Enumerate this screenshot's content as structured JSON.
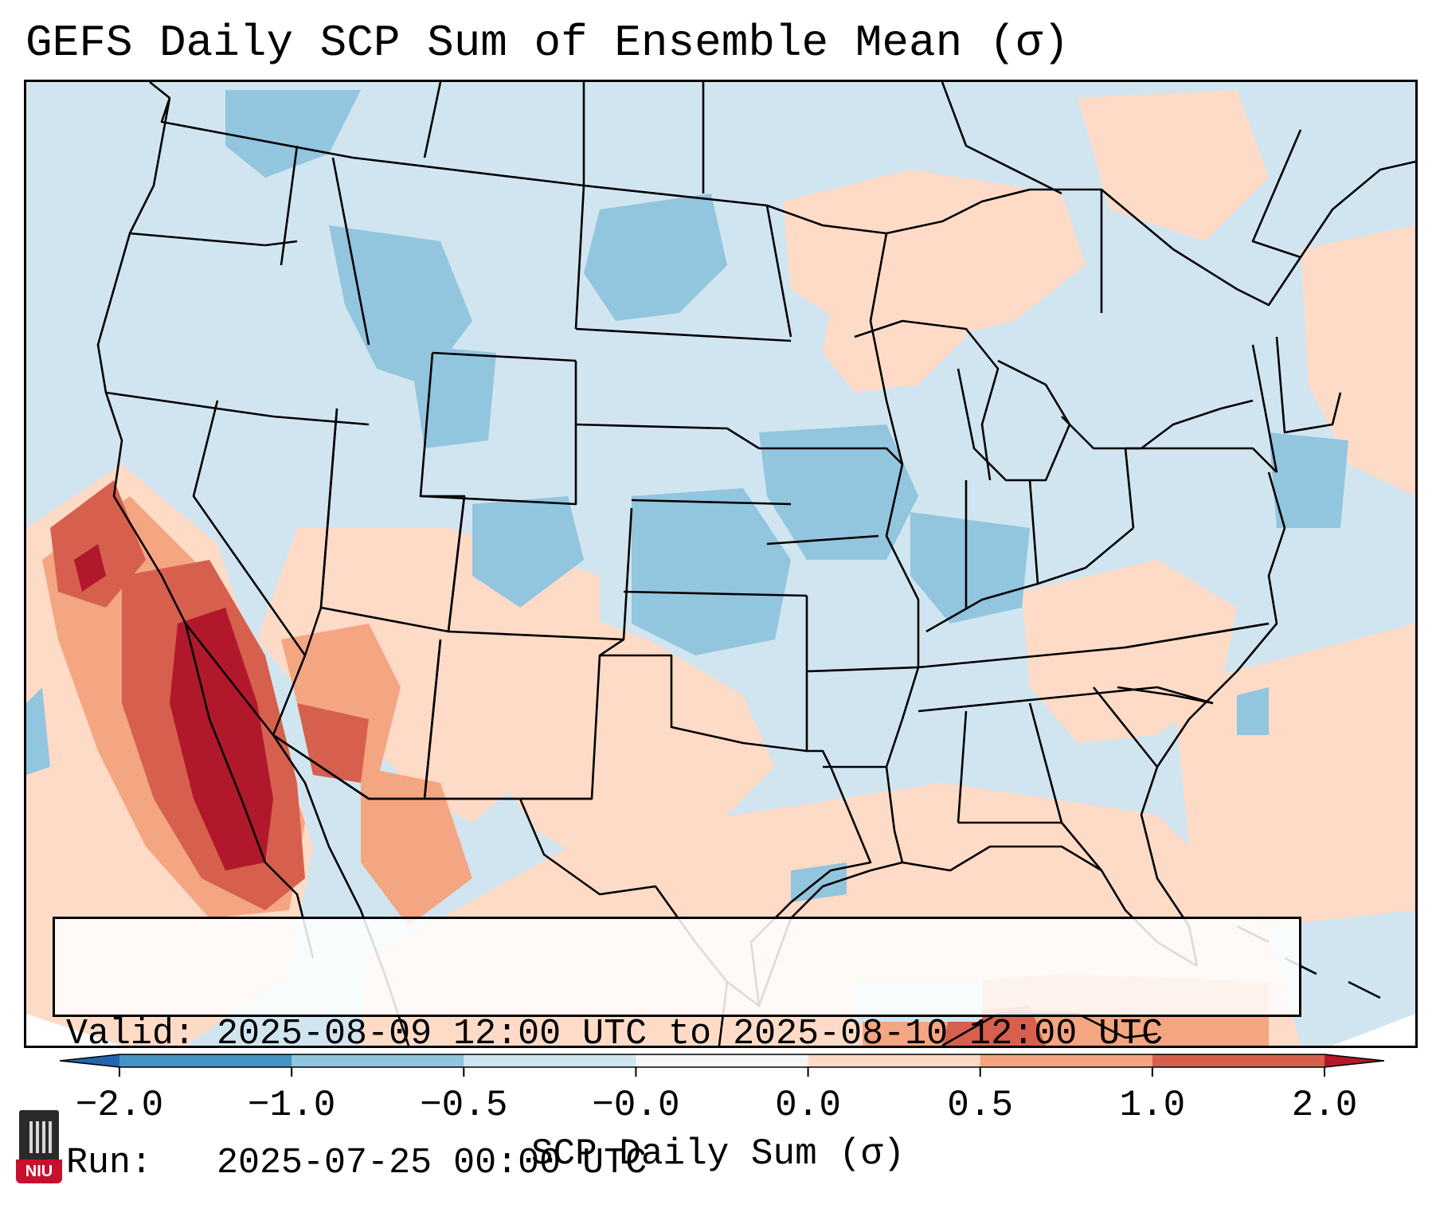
{
  "title": "GEFS Daily SCP Sum of Ensemble Mean (σ)",
  "info": {
    "valid_line": "Valid: 2025-08-09 12:00 UTC to 2025-08-10 12:00 UTC",
    "run_line": "Run:   2025-07-25 00:00 UTC"
  },
  "colorbar": {
    "label": "SCP Daily Sum (σ)",
    "tick_labels": [
      "−2.0",
      "−1.0",
      "−0.5",
      "−0.0",
      "0.0",
      "0.5",
      "1.0",
      "2.0"
    ],
    "bin_colors": [
      "#4393c3",
      "#92c5de",
      "#d1e5f0",
      "#f7f7f7",
      "#fddbc7",
      "#f4a582",
      "#d6604d"
    ],
    "under_color": "#2166ac",
    "over_color": "#b2182b"
  },
  "map": {
    "background_color": "#d1e5f0",
    "field_colors": {
      "strong_negative": "#92c5de",
      "weak_negative": "#d1e5f0",
      "weak_positive": "#fddbc7",
      "moderate_positive": "#f4a582",
      "strong_positive": "#d6604d",
      "extreme_positive": "#b2182b"
    },
    "regions": [
      {
        "name": "gulf-of-california-extreme",
        "level": "extreme_positive"
      },
      {
        "name": "baja-strong",
        "level": "strong_positive"
      },
      {
        "name": "southwest-moderate",
        "level": "moderate_positive"
      },
      {
        "name": "central-plains-negative",
        "level": "strong_negative"
      },
      {
        "name": "northern-rockies-negative",
        "level": "strong_negative"
      },
      {
        "name": "midwest-negative",
        "level": "strong_negative"
      },
      {
        "name": "southeast-positive",
        "level": "weak_positive"
      },
      {
        "name": "texas-positive",
        "level": "weak_positive"
      },
      {
        "name": "great-lakes-positive",
        "level": "weak_positive"
      },
      {
        "name": "atlantic-positive",
        "level": "weak_positive"
      },
      {
        "name": "canada-positive",
        "level": "weak_positive"
      }
    ]
  },
  "logo": {
    "text": "NIU"
  }
}
